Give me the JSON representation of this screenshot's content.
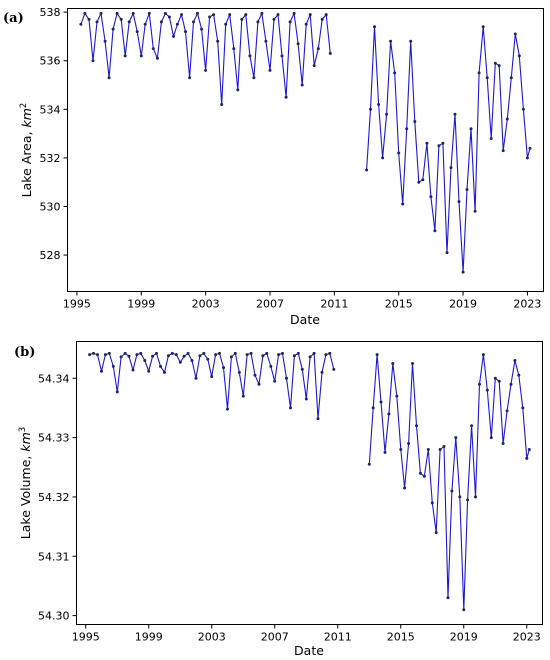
{
  "chart_data": [
    {
      "type": "line",
      "panel_label": "(a)",
      "xlabel": "Date",
      "ylabel_text": "Lake Area, ",
      "ylabel_unit": "km",
      "ylabel_exp": "2",
      "ylim": [
        526.5,
        538.15
      ],
      "xlim": [
        "1994-06-01",
        "2024-01-01"
      ],
      "x_ticks": [
        {
          "x": "1995-01-01",
          "label": "1995"
        },
        {
          "x": "1999-01-01",
          "label": "1999"
        },
        {
          "x": "2003-01-01",
          "label": "2003"
        },
        {
          "x": "2007-01-01",
          "label": "2007"
        },
        {
          "x": "2011-01-01",
          "label": "2011"
        },
        {
          "x": "2015-01-01",
          "label": "2015"
        },
        {
          "x": "2019-01-01",
          "label": "2019"
        },
        {
          "x": "2023-01-01",
          "label": "2023"
        }
      ],
      "y_ticks": [
        {
          "y": 528,
          "label": "528"
        },
        {
          "y": 530,
          "label": "530"
        },
        {
          "y": 532,
          "label": "532"
        },
        {
          "y": 534,
          "label": "534"
        },
        {
          "y": 536,
          "label": "536"
        },
        {
          "y": 538,
          "label": "538"
        }
      ],
      "series": [
        {
          "color": "#1a1ad6",
          "points": [
            [
              "1995-04-01",
              537.5
            ],
            [
              "1995-07-01",
              537.95
            ],
            [
              "1995-10-01",
              537.7
            ],
            [
              "1996-01-01",
              536.0
            ],
            [
              "1996-04-01",
              537.6
            ],
            [
              "1996-07-01",
              537.95
            ],
            [
              "1996-10-01",
              536.8
            ],
            [
              "1997-01-01",
              535.3
            ],
            [
              "1997-04-01",
              537.3
            ],
            [
              "1997-07-01",
              537.95
            ],
            [
              "1997-10-01",
              537.7
            ],
            [
              "1998-01-01",
              536.2
            ],
            [
              "1998-04-01",
              537.6
            ],
            [
              "1998-07-01",
              537.95
            ],
            [
              "1998-10-01",
              537.2
            ],
            [
              "1999-01-01",
              536.2
            ],
            [
              "1999-04-01",
              537.5
            ],
            [
              "1999-07-01",
              537.95
            ],
            [
              "1999-10-01",
              536.5
            ],
            [
              "2000-01-01",
              536.1
            ],
            [
              "2000-04-01",
              537.6
            ],
            [
              "2000-07-01",
              537.95
            ],
            [
              "2000-10-01",
              537.8
            ],
            [
              "2001-01-01",
              537.0
            ],
            [
              "2001-04-01",
              537.5
            ],
            [
              "2001-07-01",
              537.9
            ],
            [
              "2001-10-01",
              537.2
            ],
            [
              "2002-01-01",
              535.3
            ],
            [
              "2002-04-01",
              537.6
            ],
            [
              "2002-07-01",
              537.95
            ],
            [
              "2002-10-01",
              537.3
            ],
            [
              "2003-01-01",
              535.6
            ],
            [
              "2003-04-01",
              537.8
            ],
            [
              "2003-07-01",
              537.9
            ],
            [
              "2003-10-01",
              536.8
            ],
            [
              "2004-01-01",
              534.2
            ],
            [
              "2004-04-01",
              537.5
            ],
            [
              "2004-07-01",
              537.9
            ],
            [
              "2004-10-01",
              536.5
            ],
            [
              "2005-01-01",
              534.8
            ],
            [
              "2005-04-01",
              537.7
            ],
            [
              "2005-07-01",
              537.9
            ],
            [
              "2005-10-01",
              536.2
            ],
            [
              "2006-01-01",
              535.3
            ],
            [
              "2006-04-01",
              537.6
            ],
            [
              "2006-07-01",
              537.95
            ],
            [
              "2006-10-01",
              536.8
            ],
            [
              "2007-01-01",
              535.6
            ],
            [
              "2007-04-01",
              537.7
            ],
            [
              "2007-07-01",
              537.9
            ],
            [
              "2007-10-01",
              536.2
            ],
            [
              "2008-01-01",
              534.5
            ],
            [
              "2008-04-01",
              537.6
            ],
            [
              "2008-07-01",
              537.95
            ],
            [
              "2008-10-01",
              536.7
            ],
            [
              "2009-01-01",
              535.0
            ],
            [
              "2009-04-01",
              537.5
            ],
            [
              "2009-07-01",
              537.9
            ],
            [
              "2009-10-01",
              535.8
            ],
            [
              "2010-01-01",
              536.5
            ],
            [
              "2010-04-01",
              537.7
            ],
            [
              "2010-07-01",
              537.9
            ],
            [
              "2010-10-01",
              536.3
            ],
            null,
            [
              "2013-01-01",
              531.5
            ],
            [
              "2013-04-01",
              534.0
            ],
            [
              "2013-07-01",
              537.4
            ],
            [
              "2013-10-01",
              534.2
            ],
            [
              "2014-01-01",
              532.0
            ],
            [
              "2014-04-01",
              533.8
            ],
            [
              "2014-07-01",
              536.8
            ],
            [
              "2014-10-01",
              535.5
            ],
            [
              "2015-01-01",
              532.2
            ],
            [
              "2015-04-01",
              530.1
            ],
            [
              "2015-07-01",
              533.2
            ],
            [
              "2015-10-01",
              536.8
            ],
            [
              "2016-01-01",
              533.5
            ],
            [
              "2016-04-01",
              531.0
            ],
            [
              "2016-07-01",
              531.1
            ],
            [
              "2016-10-01",
              532.6
            ],
            [
              "2017-01-01",
              530.4
            ],
            [
              "2017-04-01",
              529.0
            ],
            [
              "2017-07-01",
              532.5
            ],
            [
              "2017-10-01",
              532.6
            ],
            [
              "2018-01-01",
              528.1
            ],
            [
              "2018-04-01",
              531.6
            ],
            [
              "2018-07-01",
              533.8
            ],
            [
              "2018-10-01",
              530.2
            ],
            [
              "2019-01-01",
              527.3
            ],
            [
              "2019-04-01",
              530.7
            ],
            [
              "2019-07-01",
              533.2
            ],
            [
              "2019-10-01",
              529.8
            ],
            [
              "2020-01-01",
              535.5
            ],
            [
              "2020-04-01",
              537.4
            ],
            [
              "2020-07-01",
              535.3
            ],
            [
              "2020-10-01",
              532.8
            ],
            [
              "2021-01-01",
              535.9
            ],
            [
              "2021-04-01",
              535.8
            ],
            [
              "2021-07-01",
              532.3
            ],
            [
              "2021-10-01",
              533.6
            ],
            [
              "2022-01-01",
              535.3
            ],
            [
              "2022-04-01",
              537.1
            ],
            [
              "2022-07-01",
              536.2
            ],
            [
              "2022-10-01",
              534.0
            ],
            [
              "2023-01-01",
              532.0
            ],
            [
              "2023-03-01",
              532.4
            ]
          ]
        }
      ]
    },
    {
      "type": "line",
      "panel_label": "(b)",
      "xlabel": "Date",
      "ylabel_text": "Lake Volume, ",
      "ylabel_unit": "km",
      "ylabel_exp": "3",
      "ylim": [
        54.2985,
        54.3462
      ],
      "xlim": [
        "1994-06-01",
        "2024-01-01"
      ],
      "x_ticks": [
        {
          "x": "1995-01-01",
          "label": "1995"
        },
        {
          "x": "1999-01-01",
          "label": "1999"
        },
        {
          "x": "2003-01-01",
          "label": "2003"
        },
        {
          "x": "2007-01-01",
          "label": "2007"
        },
        {
          "x": "2011-01-01",
          "label": "2011"
        },
        {
          "x": "2015-01-01",
          "label": "2015"
        },
        {
          "x": "2019-01-01",
          "label": "2019"
        },
        {
          "x": "2023-01-01",
          "label": "2023"
        }
      ],
      "y_ticks": [
        {
          "y": 54.3,
          "label": "54.30"
        },
        {
          "y": 54.31,
          "label": "54.31"
        },
        {
          "y": 54.32,
          "label": "54.32"
        },
        {
          "y": 54.33,
          "label": "54.33"
        },
        {
          "y": 54.34,
          "label": "54.34"
        }
      ],
      "series": [
        {
          "color": "#1a1ad6",
          "points": [
            [
              "1995-04-01",
              54.344
            ],
            [
              "1995-07-01",
              54.3442
            ],
            [
              "1995-10-01",
              54.344
            ],
            [
              "1996-01-01",
              54.3412
            ],
            [
              "1996-04-01",
              54.344
            ],
            [
              "1996-07-01",
              54.3442
            ],
            [
              "1996-10-01",
              54.342
            ],
            [
              "1997-01-01",
              54.3377
            ],
            [
              "1997-04-01",
              54.3436
            ],
            [
              "1997-07-01",
              54.3442
            ],
            [
              "1997-10-01",
              54.3437
            ],
            [
              "1998-01-01",
              54.3414
            ],
            [
              "1998-04-01",
              54.344
            ],
            [
              "1998-07-01",
              54.3442
            ],
            [
              "1998-10-01",
              54.343
            ],
            [
              "1999-01-01",
              54.3412
            ],
            [
              "1999-04-01",
              54.3437
            ],
            [
              "1999-07-01",
              54.3442
            ],
            [
              "1999-10-01",
              54.342
            ],
            [
              "2000-01-01",
              54.341
            ],
            [
              "2000-04-01",
              54.3438
            ],
            [
              "2000-07-01",
              54.3442
            ],
            [
              "2000-10-01",
              54.344
            ],
            [
              "2001-01-01",
              54.3427
            ],
            [
              "2001-04-01",
              54.3437
            ],
            [
              "2001-07-01",
              54.3442
            ],
            [
              "2001-10-01",
              54.343
            ],
            [
              "2002-01-01",
              54.34
            ],
            [
              "2002-04-01",
              54.3438
            ],
            [
              "2002-07-01",
              54.3442
            ],
            [
              "2002-10-01",
              54.3432
            ],
            [
              "2003-01-01",
              54.3403
            ],
            [
              "2003-04-01",
              54.344
            ],
            [
              "2003-07-01",
              54.3442
            ],
            [
              "2003-10-01",
              54.3418
            ],
            [
              "2004-01-01",
              54.3348
            ],
            [
              "2004-04-01",
              54.3436
            ],
            [
              "2004-07-01",
              54.3442
            ],
            [
              "2004-10-01",
              54.341
            ],
            [
              "2005-01-01",
              54.337
            ],
            [
              "2005-04-01",
              54.344
            ],
            [
              "2005-07-01",
              54.3442
            ],
            [
              "2005-10-01",
              54.3405
            ],
            [
              "2006-01-01",
              54.339
            ],
            [
              "2006-04-01",
              54.3438
            ],
            [
              "2006-07-01",
              54.3442
            ],
            [
              "2006-10-01",
              54.342
            ],
            [
              "2007-01-01",
              54.3395
            ],
            [
              "2007-04-01",
              54.344
            ],
            [
              "2007-07-01",
              54.3442
            ],
            [
              "2007-10-01",
              54.34
            ],
            [
              "2008-01-01",
              54.335
            ],
            [
              "2008-04-01",
              54.3438
            ],
            [
              "2008-07-01",
              54.3442
            ],
            [
              "2008-10-01",
              54.3415
            ],
            [
              "2009-01-01",
              54.3365
            ],
            [
              "2009-04-01",
              54.3436
            ],
            [
              "2009-07-01",
              54.3442
            ],
            [
              "2009-10-01",
              54.3332
            ],
            [
              "2010-01-01",
              54.341
            ],
            [
              "2010-04-01",
              54.344
            ],
            [
              "2010-07-01",
              54.3442
            ],
            [
              "2010-10-01",
              54.3415
            ],
            null,
            [
              "2013-01-01",
              54.3255
            ],
            [
              "2013-04-01",
              54.335
            ],
            [
              "2013-07-01",
              54.344
            ],
            [
              "2013-10-01",
              54.336
            ],
            [
              "2014-01-01",
              54.3275
            ],
            [
              "2014-04-01",
              54.334
            ],
            [
              "2014-07-01",
              54.3425
            ],
            [
              "2014-10-01",
              54.337
            ],
            [
              "2015-01-01",
              54.328
            ],
            [
              "2015-04-01",
              54.3215
            ],
            [
              "2015-07-01",
              54.329
            ],
            [
              "2015-10-01",
              54.3425
            ],
            [
              "2016-01-01",
              54.332
            ],
            [
              "2016-04-01",
              54.324
            ],
            [
              "2016-07-01",
              54.3235
            ],
            [
              "2016-10-01",
              54.328
            ],
            [
              "2017-01-01",
              54.319
            ],
            [
              "2017-04-01",
              54.314
            ],
            [
              "2017-07-01",
              54.328
            ],
            [
              "2017-10-01",
              54.3285
            ],
            [
              "2018-01-01",
              54.303
            ],
            [
              "2018-04-01",
              54.321
            ],
            [
              "2018-07-01",
              54.33
            ],
            [
              "2018-10-01",
              54.32
            ],
            [
              "2019-01-01",
              54.301
            ],
            [
              "2019-04-01",
              54.3195
            ],
            [
              "2019-07-01",
              54.332
            ],
            [
              "2019-10-01",
              54.32
            ],
            [
              "2020-01-01",
              54.339
            ],
            [
              "2020-04-01",
              54.344
            ],
            [
              "2020-07-01",
              54.338
            ],
            [
              "2020-10-01",
              54.33
            ],
            [
              "2021-01-01",
              54.34
            ],
            [
              "2021-04-01",
              54.3395
            ],
            [
              "2021-07-01",
              54.329
            ],
            [
              "2021-10-01",
              54.3345
            ],
            [
              "2022-01-01",
              54.339
            ],
            [
              "2022-04-01",
              54.343
            ],
            [
              "2022-07-01",
              54.3405
            ],
            [
              "2022-10-01",
              54.335
            ],
            [
              "2023-01-01",
              54.3265
            ],
            [
              "2023-03-01",
              54.328
            ]
          ]
        }
      ]
    }
  ]
}
